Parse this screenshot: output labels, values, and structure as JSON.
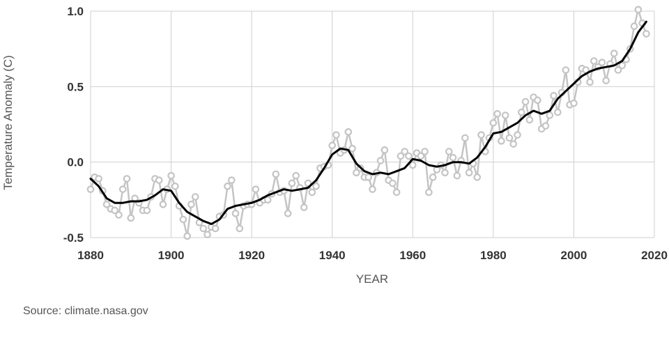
{
  "chart_data": {
    "type": "line",
    "xlabel": "YEAR",
    "ylabel": "Temperature Anomaly (C)",
    "xlim": [
      1880,
      2020
    ],
    "ylim": [
      -0.5,
      1.0
    ],
    "x_ticks": [
      1880,
      1900,
      1920,
      1940,
      1960,
      1980,
      2000,
      2020
    ],
    "y_ticks": [
      1.0,
      0.5,
      0.0,
      -0.5
    ],
    "y_tick_labels": [
      "1.0",
      "0.5",
      "0.0",
      "-0.5"
    ],
    "grid": true,
    "series": [
      {
        "style": "annual-markers",
        "color": "#c4c4c4",
        "x": [
          1880,
          1881,
          1882,
          1883,
          1884,
          1885,
          1886,
          1887,
          1888,
          1889,
          1890,
          1891,
          1892,
          1893,
          1894,
          1895,
          1896,
          1897,
          1898,
          1899,
          1900,
          1901,
          1902,
          1903,
          1904,
          1905,
          1906,
          1907,
          1908,
          1909,
          1910,
          1911,
          1912,
          1913,
          1914,
          1915,
          1916,
          1917,
          1918,
          1919,
          1920,
          1921,
          1922,
          1923,
          1924,
          1925,
          1926,
          1927,
          1928,
          1929,
          1930,
          1931,
          1932,
          1933,
          1934,
          1935,
          1936,
          1937,
          1938,
          1939,
          1940,
          1941,
          1942,
          1943,
          1944,
          1945,
          1946,
          1947,
          1948,
          1949,
          1950,
          1951,
          1952,
          1953,
          1954,
          1955,
          1956,
          1957,
          1958,
          1959,
          1960,
          1961,
          1962,
          1963,
          1964,
          1965,
          1966,
          1967,
          1968,
          1969,
          1970,
          1971,
          1972,
          1973,
          1974,
          1975,
          1976,
          1977,
          1978,
          1979,
          1980,
          1981,
          1982,
          1983,
          1984,
          1985,
          1986,
          1987,
          1988,
          1989,
          1990,
          1991,
          1992,
          1993,
          1994,
          1995,
          1996,
          1997,
          1998,
          1999,
          2000,
          2001,
          2002,
          2003,
          2004,
          2005,
          2006,
          2007,
          2008,
          2009,
          2010,
          2011,
          2012,
          2013,
          2014,
          2015,
          2016,
          2017,
          2018
        ],
        "y": [
          -0.18,
          -0.1,
          -0.11,
          -0.19,
          -0.28,
          -0.31,
          -0.32,
          -0.35,
          -0.18,
          -0.11,
          -0.37,
          -0.24,
          -0.27,
          -0.32,
          -0.32,
          -0.23,
          -0.11,
          -0.12,
          -0.28,
          -0.18,
          -0.09,
          -0.16,
          -0.29,
          -0.38,
          -0.49,
          -0.28,
          -0.23,
          -0.4,
          -0.44,
          -0.48,
          -0.43,
          -0.44,
          -0.36,
          -0.35,
          -0.16,
          -0.12,
          -0.34,
          -0.44,
          -0.29,
          -0.28,
          -0.28,
          -0.18,
          -0.27,
          -0.25,
          -0.25,
          -0.21,
          -0.08,
          -0.2,
          -0.19,
          -0.34,
          -0.14,
          -0.09,
          -0.17,
          -0.3,
          -0.14,
          -0.2,
          -0.16,
          -0.04,
          -0.03,
          -0.02,
          0.11,
          0.18,
          0.06,
          0.08,
          0.2,
          0.09,
          -0.07,
          -0.04,
          -0.1,
          -0.1,
          -0.18,
          -0.07,
          0.01,
          0.08,
          -0.12,
          -0.14,
          -0.2,
          0.04,
          0.07,
          0.04,
          -0.02,
          0.06,
          0.04,
          0.07,
          -0.2,
          -0.1,
          -0.05,
          -0.02,
          -0.07,
          0.07,
          0.03,
          -0.09,
          0.01,
          0.16,
          -0.07,
          -0.01,
          -0.1,
          0.18,
          0.07,
          0.16,
          0.26,
          0.32,
          0.14,
          0.31,
          0.16,
          0.12,
          0.18,
          0.33,
          0.4,
          0.28,
          0.43,
          0.41,
          0.22,
          0.24,
          0.31,
          0.44,
          0.33,
          0.46,
          0.61,
          0.38,
          0.39,
          0.53,
          0.62,
          0.61,
          0.53,
          0.67,
          0.63,
          0.66,
          0.54,
          0.65,
          0.72,
          0.61,
          0.64,
          0.68,
          0.75,
          0.9,
          1.01,
          0.92,
          0.85
        ]
      },
      {
        "style": "smoothed",
        "color": "#000000",
        "x": [
          1880,
          1882,
          1884,
          1886,
          1888,
          1890,
          1892,
          1894,
          1896,
          1898,
          1900,
          1902,
          1904,
          1906,
          1908,
          1910,
          1912,
          1914,
          1916,
          1918,
          1920,
          1922,
          1924,
          1926,
          1928,
          1930,
          1932,
          1934,
          1936,
          1938,
          1940,
          1942,
          1944,
          1946,
          1948,
          1950,
          1952,
          1954,
          1956,
          1958,
          1960,
          1962,
          1964,
          1966,
          1968,
          1970,
          1972,
          1974,
          1976,
          1978,
          1980,
          1982,
          1984,
          1986,
          1988,
          1990,
          1992,
          1994,
          1996,
          1998,
          2000,
          2002,
          2004,
          2006,
          2008,
          2010,
          2012,
          2014,
          2016,
          2018
        ],
        "y": [
          -0.11,
          -0.16,
          -0.24,
          -0.27,
          -0.27,
          -0.26,
          -0.26,
          -0.25,
          -0.22,
          -0.18,
          -0.19,
          -0.27,
          -0.33,
          -0.36,
          -0.39,
          -0.41,
          -0.38,
          -0.31,
          -0.29,
          -0.28,
          -0.27,
          -0.25,
          -0.22,
          -0.2,
          -0.18,
          -0.19,
          -0.18,
          -0.17,
          -0.12,
          -0.04,
          0.05,
          0.09,
          0.08,
          -0.01,
          -0.06,
          -0.08,
          -0.07,
          -0.08,
          -0.06,
          -0.04,
          0.02,
          0.01,
          -0.02,
          -0.03,
          -0.02,
          0.0,
          0.0,
          -0.01,
          0.03,
          0.1,
          0.19,
          0.2,
          0.23,
          0.26,
          0.31,
          0.34,
          0.32,
          0.34,
          0.42,
          0.47,
          0.52,
          0.57,
          0.6,
          0.62,
          0.63,
          0.64,
          0.67,
          0.75,
          0.86,
          0.93
        ]
      }
    ]
  },
  "source_text": "Source: climate.nasa.gov"
}
